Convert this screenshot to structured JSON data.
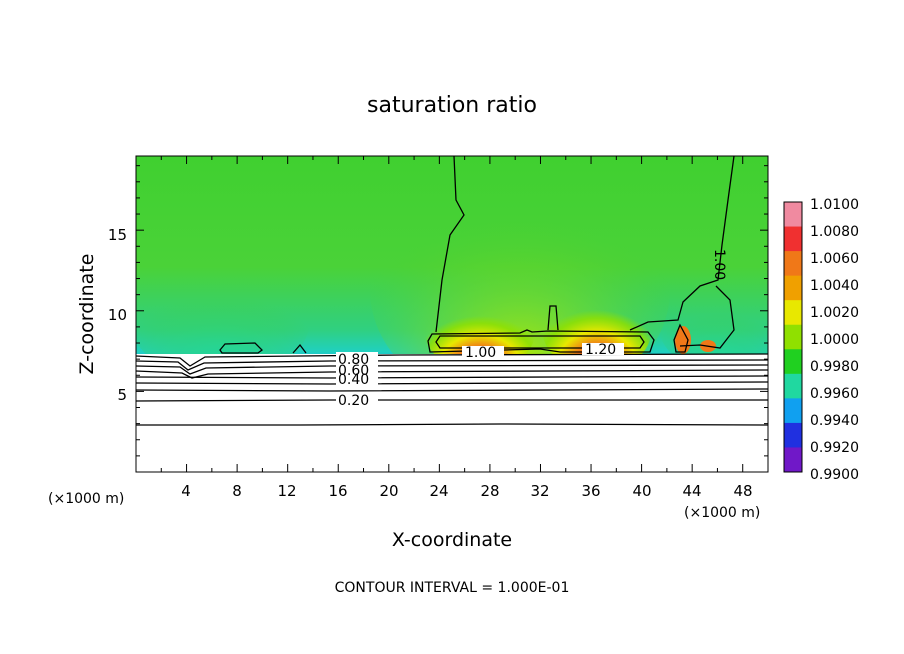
{
  "chart_data": {
    "type": "heatmap",
    "title": "saturation ratio",
    "xlabel": "X-coordinate",
    "ylabel": "Z-coordinate",
    "x_unit_label": "(×1000 m)",
    "xlim": [
      0,
      50
    ],
    "ylim": [
      0,
      19.6
    ],
    "x_ticks": [
      "4",
      "8",
      "12",
      "16",
      "20",
      "24",
      "28",
      "32",
      "36",
      "40",
      "44",
      "48"
    ],
    "y_ticks": [
      "5",
      "10",
      "15"
    ],
    "footer": "CONTOUR INTERVAL = 1.000E-01",
    "colorbar": {
      "labels": [
        "1.0100",
        "1.0080",
        "1.0060",
        "1.0040",
        "1.0020",
        "1.0000",
        "0.9980",
        "0.9960",
        "0.9940",
        "0.9920",
        "0.9900"
      ],
      "colors": [
        "#f08aa0",
        "#f03030",
        "#f07818",
        "#f0a000",
        "#e8e800",
        "#90e000",
        "#20d020",
        "#20d8a0",
        "#10a0f0",
        "#2030e0",
        "#7018c8"
      ]
    },
    "contour_labels": [
      {
        "text": "0.80",
        "x": 16.0,
        "z": 7.2
      },
      {
        "text": "0.60",
        "x": 16.0,
        "z": 6.6
      },
      {
        "text": "0.40",
        "x": 16.0,
        "z": 5.9
      },
      {
        "text": "0.20",
        "x": 16.0,
        "z": 4.6
      },
      {
        "text": "1.00",
        "x": 27.0,
        "z": 7.7
      },
      {
        "text": "1.20",
        "x": 36.3,
        "z": 7.8
      },
      {
        "text": "1.00",
        "x": 46.0,
        "z": 15.2
      }
    ]
  }
}
